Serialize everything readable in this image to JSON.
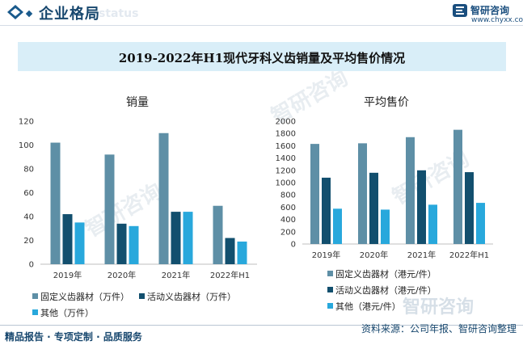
{
  "header": {
    "title": "企业格局",
    "ghost": "status"
  },
  "brand": {
    "name": "智研咨询",
    "url": "www.chyxx.com"
  },
  "main_title": "2019-2022年H1现代牙科义齿销量及平均售价情况",
  "footer": {
    "left": "精品报告 · 专项定制 · 品质服务",
    "right": "资料来源：公司年报、智研咨询整理"
  },
  "watermark": "智研咨询",
  "colors": {
    "series1": "#5e8fa6",
    "series2": "#124f6e",
    "series3": "#28a8dc",
    "title_band": "#d9eef8",
    "brand": "#17476e"
  },
  "chart_data": [
    {
      "type": "bar",
      "title": "销量",
      "categories": [
        "2019年",
        "2020年",
        "2021年",
        "2022年H1"
      ],
      "ylim": [
        0,
        120
      ],
      "yticks": [
        0,
        20,
        40,
        60,
        80,
        100,
        120
      ],
      "series": [
        {
          "name": "固定义齿器材（万件）",
          "values": [
            102,
            92,
            110,
            49
          ]
        },
        {
          "name": "活动义齿器材（万件）",
          "values": [
            42,
            34,
            44,
            22
          ]
        },
        {
          "name": "其他（万件）",
          "values": [
            35,
            32,
            44,
            19
          ]
        }
      ],
      "legend_position": "bottom"
    },
    {
      "type": "bar",
      "title": "平均售价",
      "categories": [
        "2019年",
        "2020年",
        "2021年",
        "2022年H1"
      ],
      "ylim": [
        0,
        2000
      ],
      "yticks": [
        0,
        200,
        400,
        600,
        800,
        1000,
        1200,
        1400,
        1600,
        1800,
        2000
      ],
      "series": [
        {
          "name": "固定义齿器材（港元/件）",
          "values": [
            1630,
            1640,
            1740,
            1860
          ]
        },
        {
          "name": "活动义齿器材（港元/件）",
          "values": [
            1080,
            1160,
            1200,
            1170
          ]
        },
        {
          "name": "其他（港元/件）",
          "values": [
            575,
            560,
            640,
            670
          ]
        }
      ],
      "legend_position": "bottom"
    }
  ]
}
